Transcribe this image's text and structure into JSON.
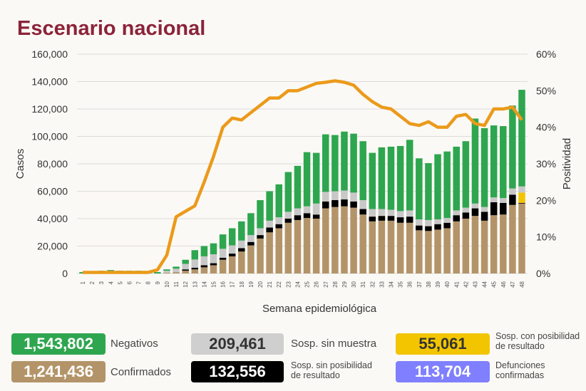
{
  "title": "Escenario nacional",
  "colors": {
    "confirmados": "#b39469",
    "sin_posibilidad": "#000000",
    "con_posibilidad": "#f2c500",
    "sin_muestra": "#c8c8c8",
    "negativos": "#2ea64f",
    "positividad": "#eb9a1b",
    "defunciones": "#7f7fff",
    "title": "#8b2339"
  },
  "chart_data": {
    "type": "bar",
    "stacked": true,
    "xlabel": "Semana epidemiológica",
    "ylabel": "Casos",
    "y2label": "Positividad",
    "ylim": [
      0,
      160000
    ],
    "y2lim": [
      0,
      60
    ],
    "yticks": [
      "0",
      "20,000",
      "40,000",
      "60,000",
      "80,000",
      "100,000",
      "120,000",
      "140,000",
      "160,000"
    ],
    "y2ticks": [
      "0%",
      "10%",
      "20%",
      "30%",
      "40%",
      "50%",
      "60%"
    ],
    "grid": true,
    "categories": [
      "1",
      "2",
      "3",
      "4",
      "5",
      "6",
      "7",
      "8",
      "9",
      "10",
      "11",
      "12",
      "13",
      "14",
      "15",
      "16",
      "17",
      "18",
      "19",
      "20",
      "21",
      "22",
      "23",
      "24",
      "25",
      "26",
      "27",
      "28",
      "29",
      "30",
      "31",
      "32",
      "33",
      "34",
      "35",
      "36",
      "37",
      "38",
      "39",
      "40",
      "41",
      "42",
      "43",
      "44",
      "45",
      "46",
      "47",
      "48"
    ],
    "series": [
      {
        "key": "confirmados",
        "values": [
          0,
          0,
          0,
          0,
          0,
          0,
          0,
          0,
          0,
          500,
          1000,
          2000,
          3000,
          4500,
          6000,
          10000,
          12500,
          16000,
          20500,
          25500,
          30000,
          33000,
          37000,
          39000,
          40500,
          40000,
          47500,
          48500,
          49000,
          48000,
          43000,
          38000,
          38500,
          38500,
          37000,
          37000,
          31500,
          31000,
          32000,
          33000,
          38000,
          40000,
          42000,
          38500,
          42500,
          43000,
          50000,
          51000
        ]
      },
      {
        "key": "sin_posibilidad",
        "values": [
          0,
          0,
          0,
          0,
          0,
          0,
          0,
          0,
          0,
          0,
          0,
          1000,
          1200,
          1500,
          1500,
          1500,
          2000,
          2500,
          2500,
          2500,
          3500,
          3000,
          3000,
          3500,
          3500,
          3000,
          5000,
          5000,
          5000,
          4500,
          4000,
          3500,
          3500,
          3500,
          4000,
          4500,
          3500,
          3500,
          4000,
          4000,
          4500,
          4500,
          5500,
          6500,
          9500,
          8500,
          7500,
          500
        ]
      },
      {
        "key": "con_posibilidad",
        "values": [
          0,
          0,
          0,
          0,
          0,
          0,
          0,
          0,
          0,
          0,
          0,
          0,
          0,
          0,
          0,
          0,
          0,
          0,
          0,
          0,
          0,
          0,
          0,
          0,
          0,
          0,
          0,
          0,
          0,
          0,
          0,
          0,
          0,
          0,
          0,
          0,
          0,
          0,
          0,
          0,
          0,
          0,
          0,
          0,
          0,
          0,
          0,
          7500
        ]
      },
      {
        "key": "sin_muestra",
        "values": [
          0,
          0,
          0,
          0,
          0,
          0,
          0,
          0,
          0,
          1500,
          2500,
          4000,
          6000,
          6500,
          6500,
          6500,
          6000,
          5500,
          5000,
          5000,
          5000,
          5000,
          5000,
          5000,
          5000,
          8000,
          7000,
          6500,
          6500,
          6500,
          6500,
          5500,
          5000,
          4500,
          4500,
          4500,
          4500,
          4500,
          3500,
          3500,
          3500,
          3500,
          3500,
          3500,
          3500,
          3500,
          4500,
          4500
        ]
      },
      {
        "key": "negativos",
        "values": [
          1000,
          1500,
          2000,
          2500,
          2000,
          2000,
          2000,
          1500,
          1000,
          1000,
          1500,
          3000,
          6800,
          7500,
          8000,
          10500,
          12500,
          14000,
          16000,
          20500,
          21500,
          24000,
          29000,
          31000,
          39500,
          37000,
          42000,
          41000,
          43000,
          43000,
          43000,
          41000,
          45000,
          46000,
          47500,
          51500,
          44500,
          41500,
          47500,
          48500,
          46500,
          48500,
          62000,
          57500,
          52500,
          52500,
          60500,
          70500
        ]
      }
    ],
    "line": {
      "key": "positividad",
      "axis": "right",
      "values": [
        0.3,
        0.3,
        0.3,
        0.3,
        0.3,
        0.3,
        0.3,
        0.3,
        1,
        5,
        15.5,
        17,
        18.5,
        25,
        32,
        40,
        42.5,
        42,
        44,
        46,
        48,
        48,
        50,
        50,
        51,
        52,
        52.3,
        52.7,
        52.3,
        51.5,
        49,
        47,
        45.5,
        45,
        43,
        41,
        40.5,
        41.5,
        40,
        40,
        43,
        43.5,
        41,
        40.5,
        45,
        45,
        45.5,
        42
      ]
    }
  },
  "summary": [
    {
      "value": "1,543,802",
      "label": "Negativos",
      "color_key": "negativos"
    },
    {
      "value": "209,461",
      "label": "Sosp. sin muestra",
      "color_key": "sin_muestra"
    },
    {
      "value": "55,061",
      "label": "Sosp. con posibilidad de resultado",
      "color_key": "con_posibilidad"
    },
    {
      "value": "1,241,436",
      "label": "Confirmados",
      "color_key": "confirmados"
    },
    {
      "value": "132,556",
      "label": "Sosp. sin posibilidad de resultado",
      "color_key": "sin_posibilidad"
    },
    {
      "value": "113,704",
      "label": "Defunciones confirmadas",
      "color_key": "defunciones"
    }
  ]
}
